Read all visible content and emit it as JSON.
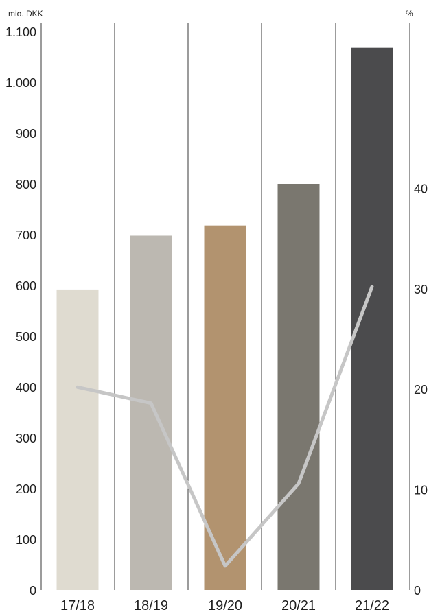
{
  "chart_data": {
    "type": "bar",
    "categories": [
      "17/18",
      "18/19",
      "19/20",
      "20/21",
      "21/22"
    ],
    "series": [
      {
        "type": "bar",
        "axis": "left",
        "values": [
          592,
          698,
          718,
          800,
          1068
        ],
        "colors": [
          "#dfdbd0",
          "#bcb8b1",
          "#b2936f",
          "#7a776f",
          "#4b4b4d"
        ]
      },
      {
        "type": "line",
        "axis": "right",
        "values": [
          20.2,
          18.6,
          2.4,
          10.6,
          30.2
        ],
        "color": "#c6c6c6"
      }
    ],
    "left_axis": {
      "unit": "mio. DKK",
      "min": 0,
      "max": 1100,
      "ticks": [
        0,
        100,
        200,
        300,
        400,
        500,
        600,
        700,
        800,
        900,
        1000,
        1100
      ],
      "tick_labels": [
        "0",
        "100",
        "200",
        "300",
        "400",
        "500",
        "600",
        "700",
        "800",
        "900",
        "1.000",
        "1.100"
      ]
    },
    "right_axis": {
      "unit": "%",
      "min": 0,
      "max": 55.6,
      "ticks": [
        0,
        10,
        20,
        30,
        40
      ],
      "tick_labels": [
        "0",
        "10",
        "20",
        "30",
        "40"
      ]
    },
    "grid": "vertical separators between categories",
    "legend": "none"
  }
}
